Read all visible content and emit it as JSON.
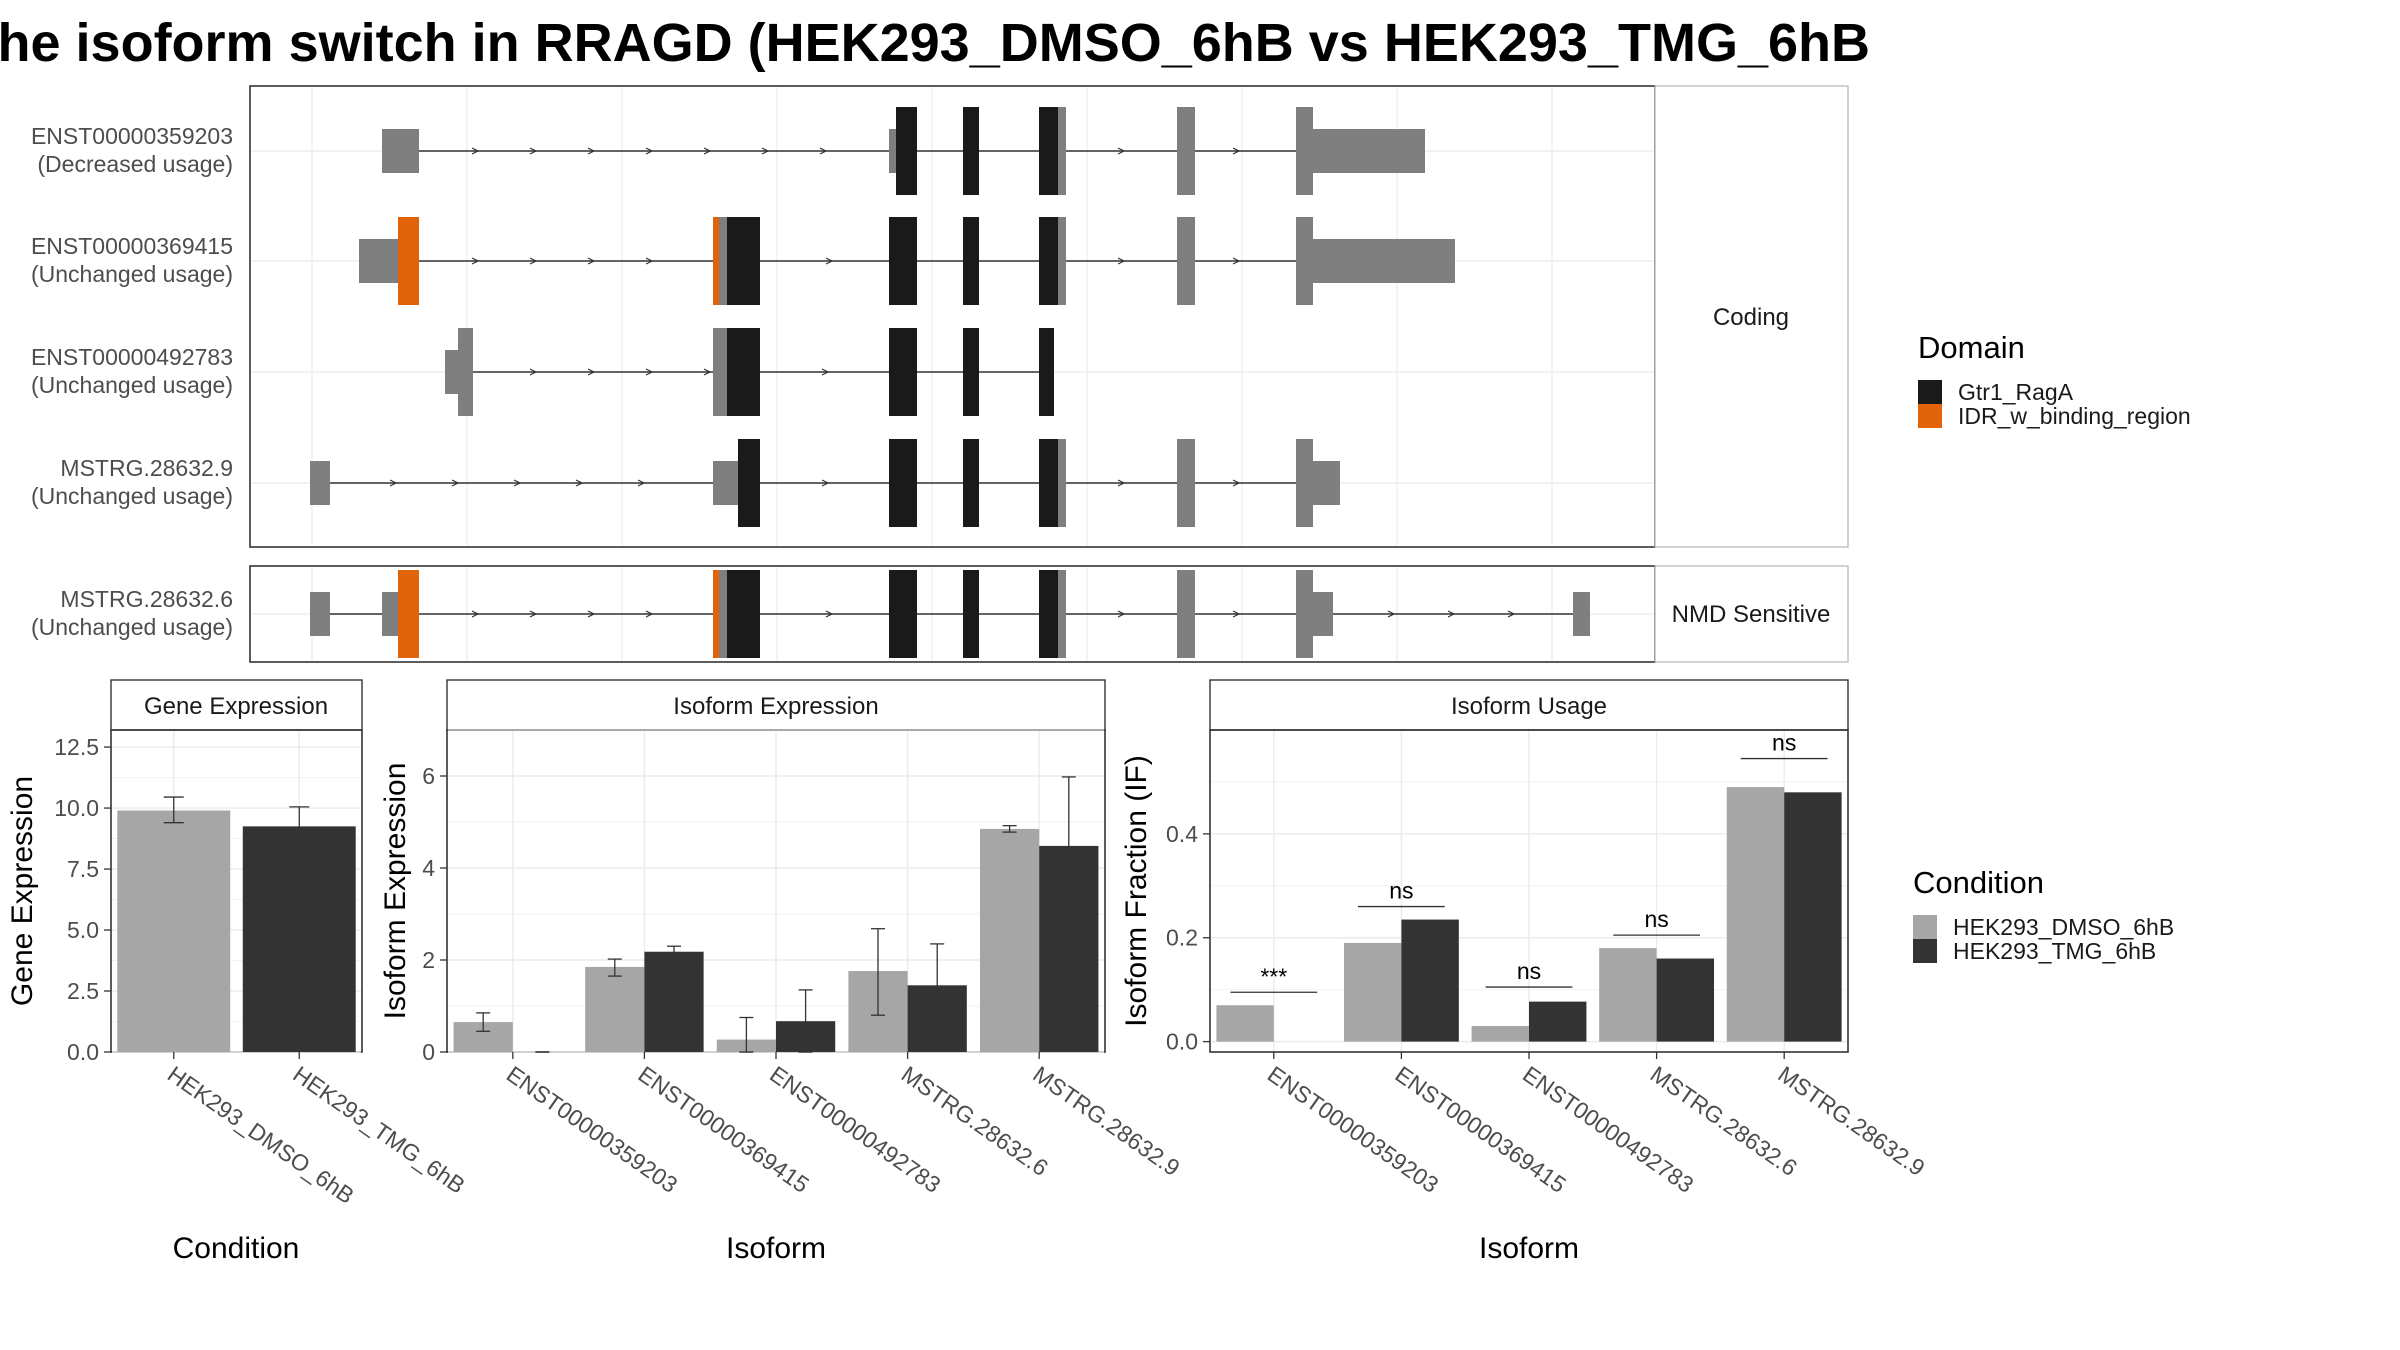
{
  "title": "he isoform switch in RRAGD (HEK293_DMSO_6hB vs HEK293_TMG_6hB",
  "colors": {
    "exon": "#7f7f7f",
    "Gtr1_RagA": "#1a1a1a",
    "IDR_w_binding_region": "#e1630a",
    "HEK293_DMSO_6hB": "#a6a6a6",
    "HEK293_TMG_6hB": "#333333"
  },
  "structure": {
    "panels": [
      {
        "label": "Coding",
        "transcripts": [
          {
            "id": "ENST00000359203",
            "status": "(Decreased usage)"
          },
          {
            "id": "ENST00000369415",
            "status": "(Unchanged usage)"
          },
          {
            "id": "ENST00000492783",
            "status": "(Unchanged usage)"
          },
          {
            "id": "MSTRG.28632.9",
            "status": "(Unchanged usage)"
          }
        ]
      },
      {
        "label": "NMD Sensitive",
        "transcripts": [
          {
            "id": "MSTRG.28632.6",
            "status": "(Unchanged usage)"
          }
        ]
      }
    ],
    "domain_legend": {
      "title": "Domain",
      "items": [
        "Gtr1_RagA",
        "IDR_w_binding_region"
      ]
    }
  },
  "chart_data": [
    {
      "type": "bar",
      "title": "Gene Expression",
      "xlabel": "Condition",
      "ylabel": "Gene Expression",
      "ylim": [
        0,
        13.2
      ],
      "yticks": [
        0.0,
        2.5,
        5.0,
        7.5,
        10.0,
        12.5
      ],
      "ytick_labels": [
        "0.0",
        "2.5",
        "5.0",
        "7.5",
        "10.0",
        "12.5"
      ],
      "categories": [
        "HEK293_DMSO_6hB",
        "HEK293_TMG_6hB"
      ],
      "values": [
        9.9,
        9.25
      ],
      "errors": [
        [
          9.4,
          10.45
        ],
        [
          8.45,
          10.05
        ]
      ]
    },
    {
      "type": "bar",
      "title": "Isoform Expression",
      "xlabel": "Isoform",
      "ylabel": "Isoform Expression",
      "ylim": [
        0,
        7.0
      ],
      "yticks": [
        0,
        2,
        4,
        6
      ],
      "ytick_labels": [
        "0",
        "2",
        "4",
        "6"
      ],
      "categories": [
        "ENST00000359203",
        "ENST00000369415",
        "ENST00000492783",
        "MSTRG.28632.6",
        "MSTRG.28632.9"
      ],
      "series": [
        {
          "name": "HEK293_DMSO_6hB",
          "values": [
            0.65,
            1.85,
            0.27,
            1.76,
            4.85
          ],
          "errors": [
            [
              0.45,
              0.85
            ],
            [
              1.65,
              2.02
            ],
            [
              0.0,
              0.75
            ],
            [
              0.8,
              2.68
            ],
            [
              4.78,
              4.92
            ]
          ]
        },
        {
          "name": "HEK293_TMG_6hB",
          "values": [
            0.0,
            2.18,
            0.67,
            1.45,
            4.48
          ],
          "errors": [
            [
              0.0,
              0.0
            ],
            [
              2.05,
              2.3
            ],
            [
              0.0,
              1.35
            ],
            [
              0.55,
              2.35
            ],
            [
              2.98,
              5.98
            ]
          ]
        }
      ]
    },
    {
      "type": "bar",
      "title": "Isoform Usage",
      "xlabel": "Isoform",
      "ylabel": "Isoform Fraction (IF)",
      "ylim": [
        -0.02,
        0.6
      ],
      "yticks": [
        0.0,
        0.2,
        0.4
      ],
      "ytick_labels": [
        "0.0",
        "0.2",
        "0.4"
      ],
      "categories": [
        "ENST00000359203",
        "ENST00000369415",
        "ENST00000492783",
        "MSTRG.28632.6",
        "MSTRG.28632.9"
      ],
      "series": [
        {
          "name": "HEK293_DMSO_6hB",
          "values": [
            0.07,
            0.19,
            0.03,
            0.18,
            0.49
          ]
        },
        {
          "name": "HEK293_TMG_6hB",
          "values": [
            0.0,
            0.235,
            0.077,
            0.16,
            0.48
          ]
        }
      ],
      "significance": [
        "***",
        "ns",
        "ns",
        "ns",
        "ns"
      ],
      "significance_y": [
        0.095,
        0.26,
        0.105,
        0.205,
        0.545
      ]
    }
  ],
  "condition_legend": {
    "title": "Condition",
    "items": [
      "HEK293_DMSO_6hB",
      "HEK293_TMG_6hB"
    ]
  }
}
